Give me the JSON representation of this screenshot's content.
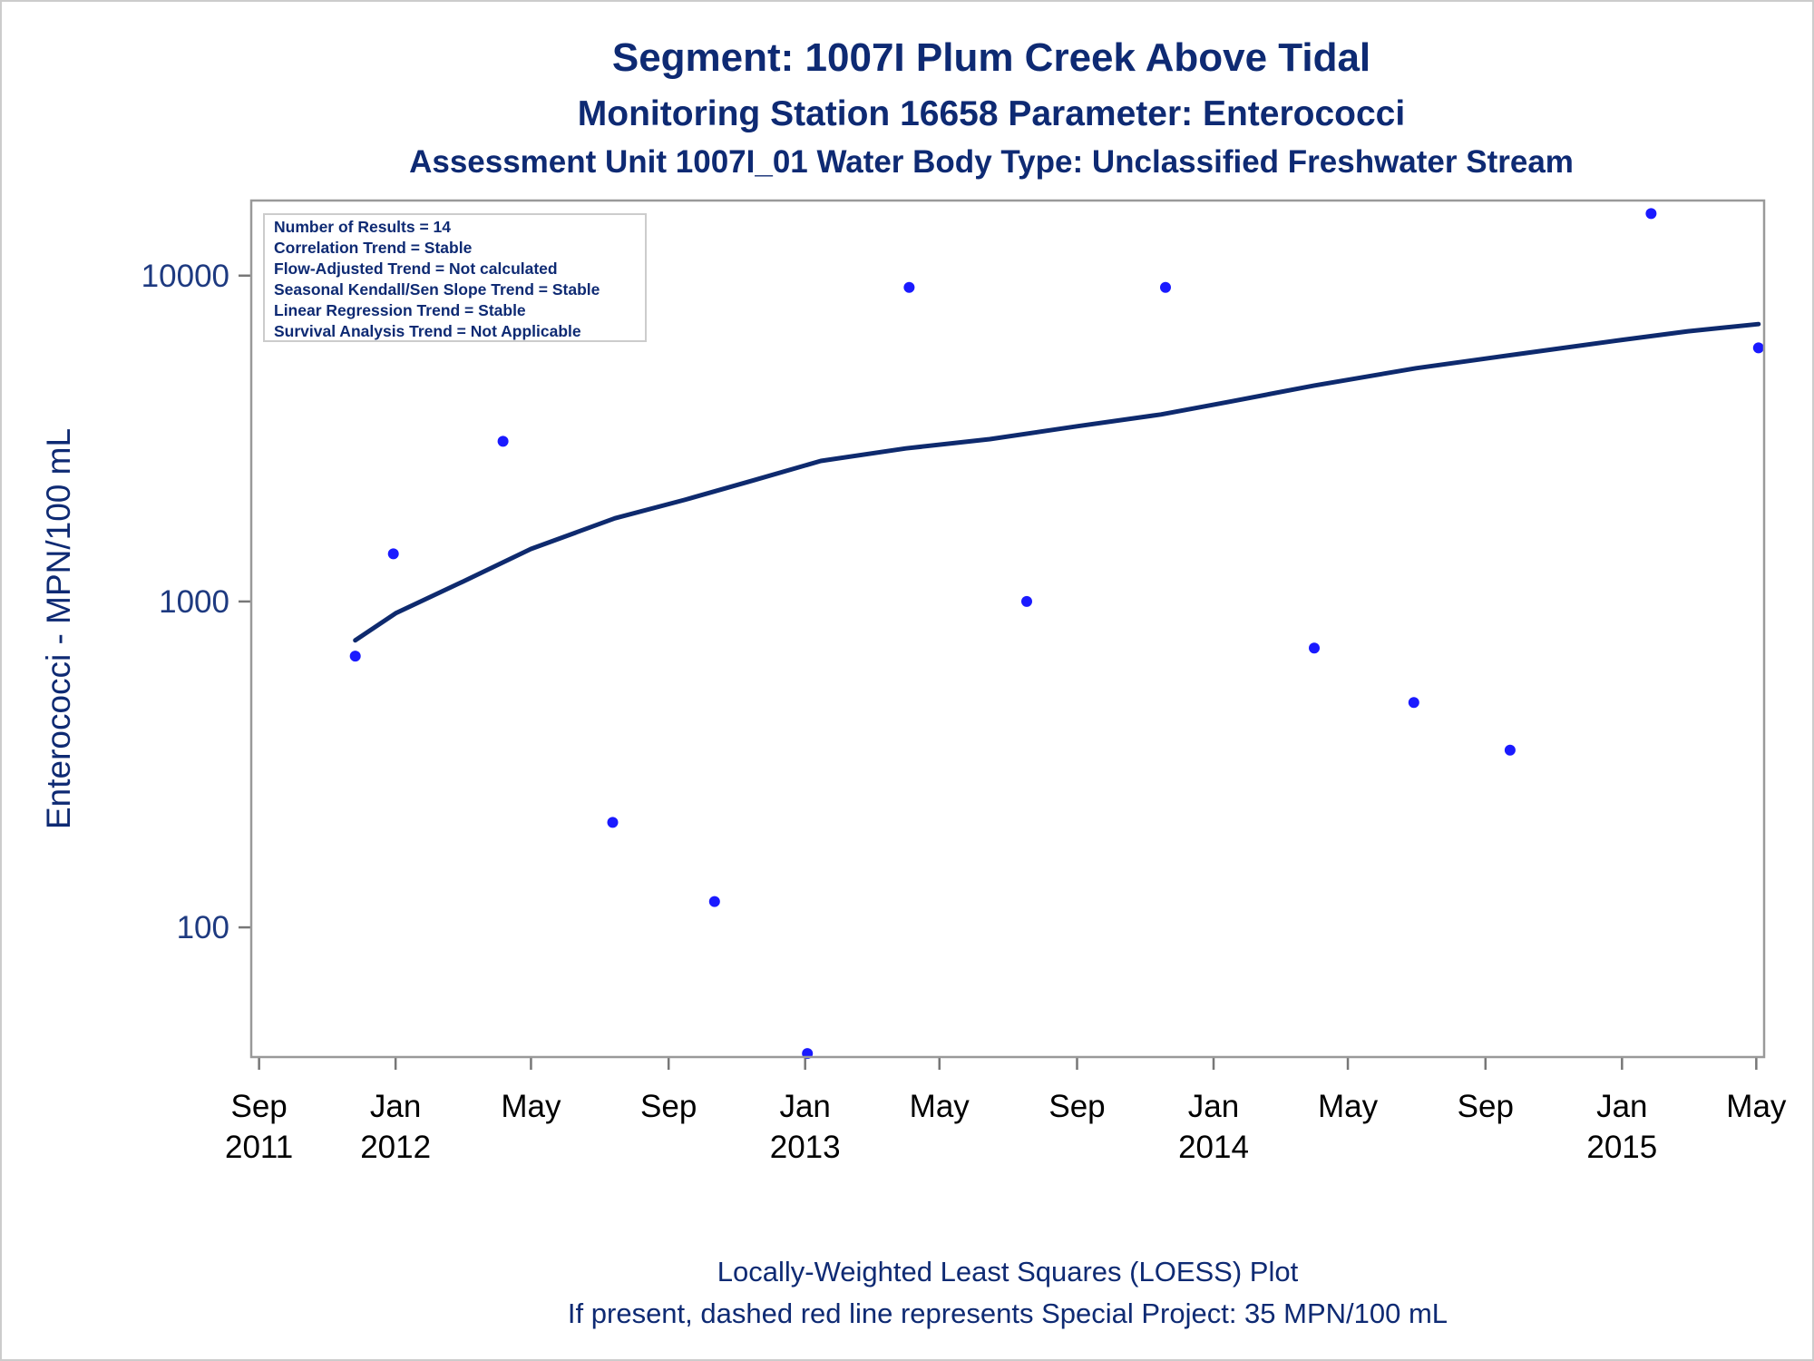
{
  "chart_data": {
    "type": "scatter",
    "title": "Segment: 1007I  Plum Creek Above Tidal",
    "subtitle": "Monitoring Station 16658 Parameter: Enterococci",
    "subtitle2": "Assessment Unit 1007I_01   Water Body Type: Unclassified Freshwater Stream",
    "xlabel": "",
    "ylabel": "Enterococci - MPN/100 mL",
    "yscale": "log",
    "xlim": [
      "2011-08-25",
      "2015-05-08"
    ],
    "ylim": [
      40,
      17000
    ],
    "grid": false,
    "x_ticks": [
      {
        "date": "2011-09-01",
        "line1": "Sep",
        "line2": "2011"
      },
      {
        "date": "2012-01-01",
        "line1": "Jan",
        "line2": "2012"
      },
      {
        "date": "2012-05-01",
        "line1": "May",
        "line2": ""
      },
      {
        "date": "2012-09-01",
        "line1": "Sep",
        "line2": ""
      },
      {
        "date": "2013-01-01",
        "line1": "Jan",
        "line2": "2013"
      },
      {
        "date": "2013-05-01",
        "line1": "May",
        "line2": ""
      },
      {
        "date": "2013-09-01",
        "line1": "Sep",
        "line2": ""
      },
      {
        "date": "2014-01-01",
        "line1": "Jan",
        "line2": "2014"
      },
      {
        "date": "2014-05-01",
        "line1": "May",
        "line2": ""
      },
      {
        "date": "2014-09-01",
        "line1": "Sep",
        "line2": ""
      },
      {
        "date": "2015-01-01",
        "line1": "Jan",
        "line2": "2015"
      },
      {
        "date": "2015-05-01",
        "line1": "May",
        "line2": ""
      }
    ],
    "y_ticks": [
      {
        "value": 100,
        "label": "100"
      },
      {
        "value": 1000,
        "label": "1000"
      },
      {
        "value": 10000,
        "label": "10000"
      }
    ],
    "points": [
      {
        "date": "2011-11-26",
        "value": 680
      },
      {
        "date": "2011-12-30",
        "value": 1400
      },
      {
        "date": "2012-04-06",
        "value": 3100
      },
      {
        "date": "2012-07-13",
        "value": 210
      },
      {
        "date": "2012-10-12",
        "value": 120
      },
      {
        "date": "2013-01-03",
        "value": 41
      },
      {
        "date": "2013-04-04",
        "value": 9200
      },
      {
        "date": "2013-07-18",
        "value": 1000
      },
      {
        "date": "2013-11-19",
        "value": 9200
      },
      {
        "date": "2014-04-01",
        "value": 720
      },
      {
        "date": "2014-06-29",
        "value": 490
      },
      {
        "date": "2014-09-23",
        "value": 350
      },
      {
        "date": "2015-01-27",
        "value": 15500
      },
      {
        "date": "2015-05-03",
        "value": 6000
      }
    ],
    "loess_curve": [
      {
        "date": "2011-11-26",
        "value": 760
      },
      {
        "date": "2012-01-01",
        "value": 920
      },
      {
        "date": "2012-03-01",
        "value": 1150
      },
      {
        "date": "2012-05-01",
        "value": 1450
      },
      {
        "date": "2012-07-15",
        "value": 1800
      },
      {
        "date": "2012-09-15",
        "value": 2050
      },
      {
        "date": "2012-11-15",
        "value": 2350
      },
      {
        "date": "2013-01-15",
        "value": 2700
      },
      {
        "date": "2013-04-01",
        "value": 2950
      },
      {
        "date": "2013-06-15",
        "value": 3150
      },
      {
        "date": "2013-09-01",
        "value": 3450
      },
      {
        "date": "2013-11-15",
        "value": 3750
      },
      {
        "date": "2014-01-15",
        "value": 4100
      },
      {
        "date": "2014-04-01",
        "value": 4600
      },
      {
        "date": "2014-07-01",
        "value": 5200
      },
      {
        "date": "2014-10-01",
        "value": 5750
      },
      {
        "date": "2015-01-01",
        "value": 6350
      },
      {
        "date": "2015-03-01",
        "value": 6750
      },
      {
        "date": "2015-05-03",
        "value": 7100
      }
    ],
    "stats_box": [
      "Number of Results = 14",
      "Correlation Trend = Stable",
      "Flow-Adjusted Trend = Not calculated",
      "Seasonal Kendall/Sen Slope Trend = Stable",
      "Linear Regression Trend = Stable",
      "Survival Analysis Trend = Not Applicable"
    ],
    "stats_box_placement": "top-left",
    "footnotes": [
      "Locally-Weighted Least Squares (LOESS) Plot",
      "If present, dashed red line represents Special Project: 35 MPN/100 mL"
    ],
    "colors": {
      "points": "#1a1aff",
      "curve": "#0e2a6e",
      "title": "#0e2a73",
      "frame": "#999999"
    }
  }
}
